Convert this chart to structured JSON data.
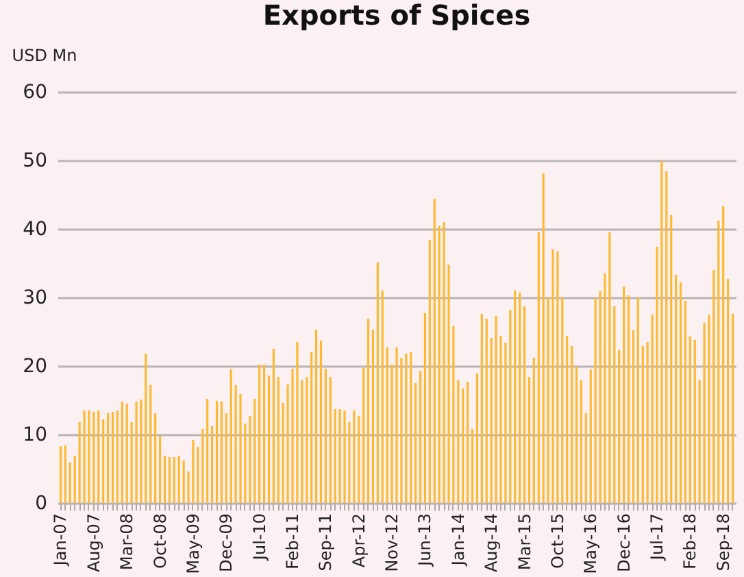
{
  "chart_data": {
    "type": "bar",
    "title": "Exports of Spices",
    "ylabel": "USD Mn",
    "categories": [
      "Jan-07",
      null,
      null,
      null,
      null,
      null,
      null,
      "Aug-07",
      null,
      null,
      null,
      null,
      null,
      null,
      "Mar-08",
      null,
      null,
      null,
      null,
      null,
      null,
      "Oct-08",
      null,
      null,
      null,
      null,
      null,
      null,
      "May-09",
      null,
      null,
      null,
      null,
      null,
      null,
      "Dec-09",
      null,
      null,
      null,
      null,
      null,
      null,
      "Jul-10",
      null,
      null,
      null,
      null,
      null,
      null,
      "Feb-11",
      null,
      null,
      null,
      null,
      null,
      null,
      "Sep-11",
      null,
      null,
      null,
      null,
      null,
      null,
      "Apr-12",
      null,
      null,
      null,
      null,
      null,
      null,
      "Nov-12",
      null,
      null,
      null,
      null,
      null,
      null,
      "Jun-13",
      null,
      null,
      null,
      null,
      null,
      null,
      "Jan-14",
      null,
      null,
      null,
      null,
      null,
      null,
      "Aug-14",
      null,
      null,
      null,
      null,
      null,
      null,
      "Mar-15",
      null,
      null,
      null,
      null,
      null,
      null,
      "Oct-15",
      null,
      null,
      null,
      null,
      null,
      null,
      "May-16",
      null,
      null,
      null,
      null,
      null,
      null,
      "Dec-16",
      null,
      null,
      null,
      null,
      null,
      null,
      "Jul-17",
      null,
      null,
      null,
      null,
      null,
      null,
      "Feb-18",
      null,
      null,
      null,
      null,
      null,
      null,
      "Sep-18",
      null,
      null
    ],
    "values": [
      8.3,
      8.4,
      5.9,
      6.9,
      11.8,
      13.5,
      13.5,
      13.3,
      13.5,
      12.2,
      13.1,
      13.3,
      13.5,
      14.8,
      14.5,
      11.8,
      14.8,
      15.1,
      21.8,
      17.2,
      13.1,
      9.8,
      6.9,
      6.7,
      6.7,
      6.9,
      6.2,
      4.6,
      9.2,
      8.2,
      10.8,
      15.2,
      11.2,
      14.9,
      14.8,
      13.1,
      19.5,
      17.2,
      15.9,
      11.6,
      12.7,
      15.2,
      20.2,
      20.2,
      18.6,
      22.5,
      18.4,
      14.6,
      17.3,
      19.6,
      23.5,
      17.9,
      18.4,
      22.0,
      25.3,
      23.7,
      19.6,
      18.4,
      13.7,
      13.7,
      13.5,
      11.8,
      13.5,
      12.7,
      19.7,
      26.9,
      25.3,
      35.1,
      31.0,
      22.7,
      20.2,
      22.7,
      21.2,
      21.8,
      22.0,
      17.5,
      19.3,
      27.7,
      38.4,
      44.4,
      40.4,
      41.0,
      34.8,
      25.8,
      17.9,
      16.7,
      17.7,
      10.8,
      18.9,
      27.6,
      26.9,
      24.1,
      27.3,
      24.4,
      23.4,
      28.2,
      31.0,
      30.7,
      28.7,
      18.4,
      21.2,
      39.5,
      48.1,
      30.0,
      37.0,
      36.7,
      30.0,
      24.4,
      22.9,
      19.9,
      17.9,
      13.1,
      19.5,
      29.9,
      30.9,
      33.5,
      39.5,
      28.7,
      22.3,
      31.6,
      30.3,
      25.2,
      30.0,
      22.9,
      23.5,
      27.5,
      37.4,
      49.9,
      48.4,
      42.0,
      33.3,
      32.2,
      29.5,
      24.3,
      23.8,
      17.9,
      26.3,
      27.5,
      34.0,
      41.2,
      43.3,
      32.7,
      27.6
    ],
    "color": "#fdb933",
    "ylim": [
      0,
      60
    ],
    "yticks": [
      0,
      10,
      20,
      30,
      40,
      50,
      60
    ],
    "grid": "y"
  }
}
